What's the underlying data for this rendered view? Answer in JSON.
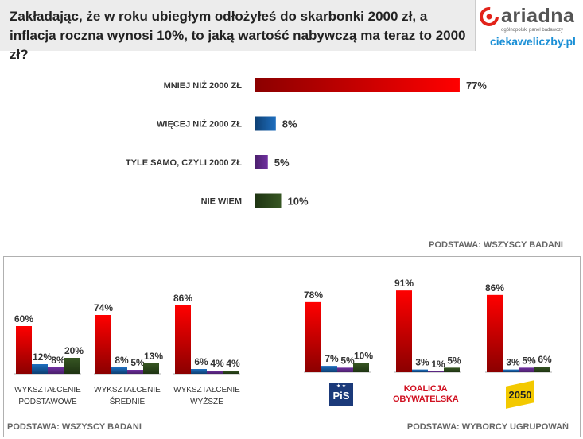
{
  "title": "Zakładając, że w roku ubiegłym odłożyłeś do skarbonki 2000 zł, a inflacja roczna wynosi 10%, to jaką wartość nabywczą ma teraz to 2000 zł?",
  "logo": {
    "name": "ariadna",
    "tagline": "ogólnopolski panel badawczy",
    "site": "ciekaweliczby.pl"
  },
  "colors": {
    "red": "#ff0000",
    "blue": "#1f6fbf",
    "purple": "#7030a0",
    "green": "#375623"
  },
  "basis_main": "PODSTAWA: WSZYSCY BADANI",
  "basis_edu": "PODSTAWA: WSZYSCY BADANI",
  "basis_party": "PODSTAWA: WYBORCY UGRUPOWAŃ",
  "party_logos": {
    "pis": "PiS",
    "ko_line1": "KOALICJA",
    "ko_line2": "OBYWATELSKA",
    "pl2050": "2050"
  },
  "chart_data": [
    {
      "type": "bar",
      "orientation": "horizontal",
      "categories": [
        "MNIEJ NIŻ 2000 ZŁ",
        "WIĘCEJ NIŻ 2000 ZŁ",
        "TYLE SAMO, CZYLI 2000 ZŁ",
        "NIE WIEM"
      ],
      "values": [
        77,
        8,
        5,
        10
      ],
      "value_suffix": "%",
      "bar_colors": [
        "red",
        "blue",
        "purple",
        "green"
      ],
      "xlim": [
        0,
        100
      ],
      "grid": false
    },
    {
      "type": "bar",
      "orientation": "vertical",
      "categories": [
        [
          "WYKSZTAŁCENIE",
          "PODSTAWOWE"
        ],
        [
          "WYKSZTAŁCENIE",
          "ŚREDNIE"
        ],
        [
          "WYKSZTAŁCENIE",
          "WYŻSZE"
        ]
      ],
      "series": [
        {
          "color": "red",
          "values": [
            60,
            74,
            86
          ]
        },
        {
          "color": "blue",
          "values": [
            12,
            8,
            6
          ]
        },
        {
          "color": "purple",
          "values": [
            8,
            5,
            4
          ]
        },
        {
          "color": "green",
          "values": [
            20,
            13,
            4
          ]
        }
      ],
      "value_suffix": "%",
      "ylim": [
        0,
        100
      ],
      "grid": false
    },
    {
      "type": "bar",
      "orientation": "vertical",
      "categories": [
        "PiS",
        "KOALICJA OBYWATELSKA",
        "2050"
      ],
      "series": [
        {
          "color": "red",
          "values": [
            78,
            91,
            86
          ]
        },
        {
          "color": "blue",
          "values": [
            7,
            3,
            3
          ]
        },
        {
          "color": "purple",
          "values": [
            5,
            1,
            5
          ]
        },
        {
          "color": "green",
          "values": [
            10,
            5,
            6
          ]
        }
      ],
      "value_suffix": "%",
      "ylim": [
        0,
        100
      ],
      "grid": false
    }
  ]
}
